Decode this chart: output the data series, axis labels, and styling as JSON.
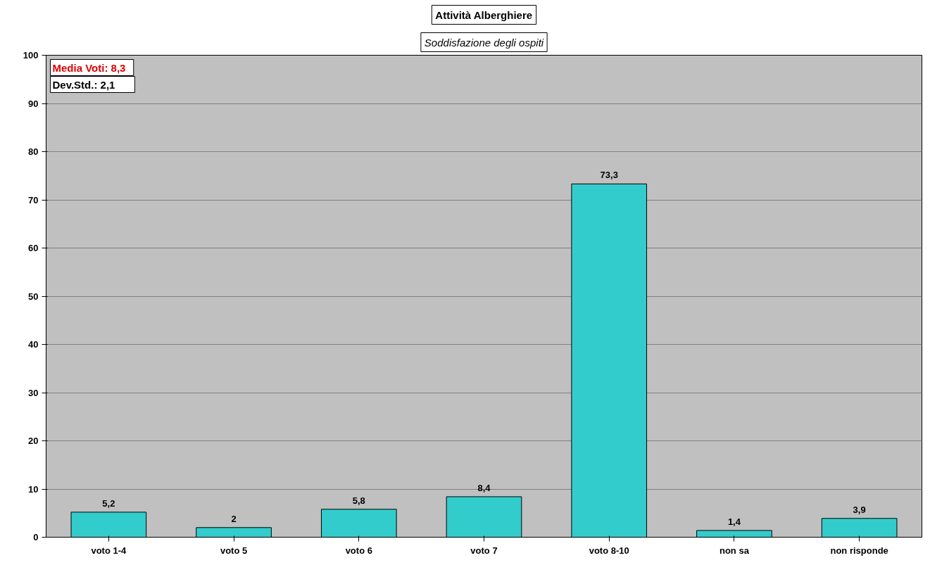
{
  "chart_data": {
    "type": "bar",
    "title": "Attività Alberghiere",
    "subtitle": "Soddisfazione degli ospiti",
    "categories": [
      "voto 1-4",
      "voto 5",
      "voto 6",
      "voto 7",
      "voto 8-10",
      "non sa",
      "non risponde"
    ],
    "values": [
      5.2,
      2,
      5.8,
      8.4,
      73.3,
      1.4,
      3.9
    ],
    "value_labels": [
      "5,2",
      "2",
      "5,8",
      "8,4",
      "73,3",
      "1,4",
      "3,9"
    ],
    "color": "#33cccc",
    "ylim": [
      0,
      100
    ],
    "yticks": [
      0,
      10,
      20,
      30,
      40,
      50,
      60,
      70,
      80,
      90,
      100
    ],
    "grid": "y",
    "annotations": [
      "Media Voti:   8,3",
      "Dev.Std.:       2,1"
    ]
  }
}
